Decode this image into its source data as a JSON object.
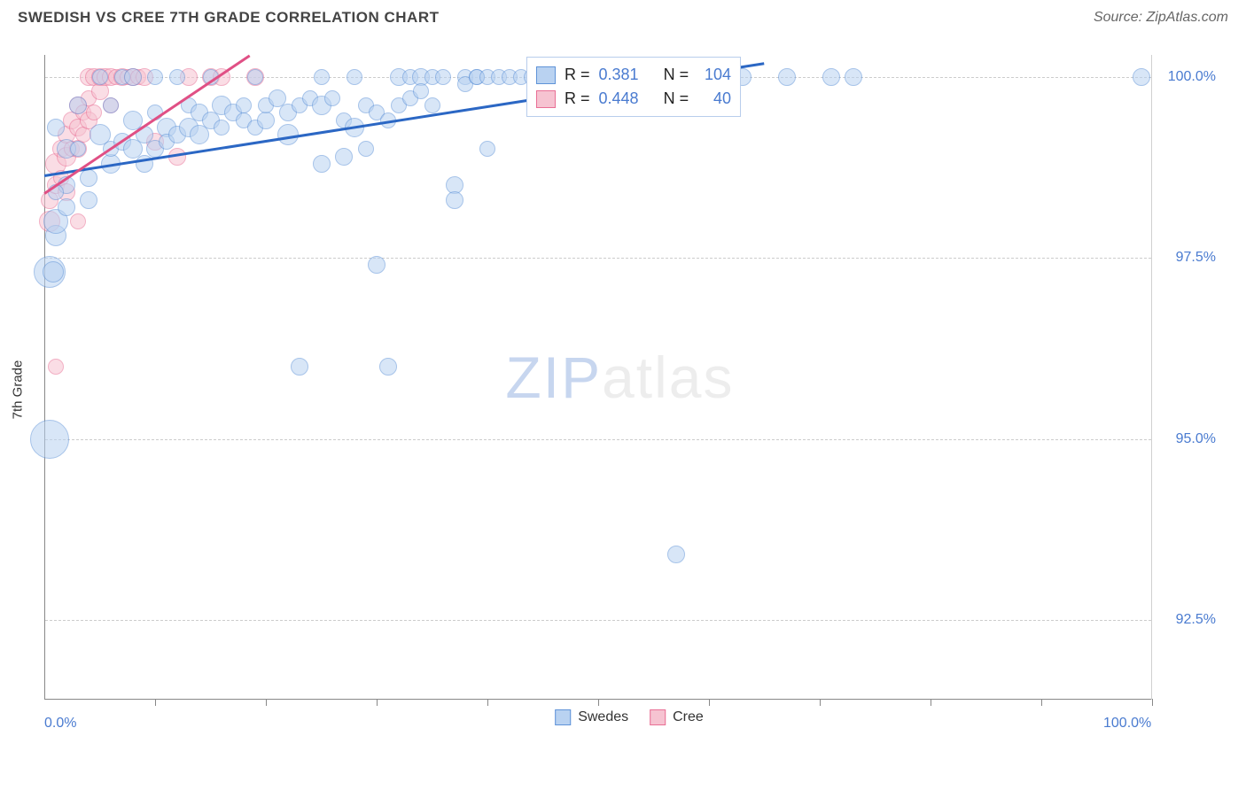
{
  "header": {
    "title": "SWEDISH VS CREE 7TH GRADE CORRELATION CHART",
    "source": "Source: ZipAtlas.com"
  },
  "watermark": {
    "part1": "ZIP",
    "part2": "atlas"
  },
  "chart": {
    "type": "scatter",
    "ylabel": "7th Grade",
    "background_color": "#ffffff",
    "grid_color": "#cccccc",
    "axis_color": "#888888",
    "xlim": [
      0,
      100
    ],
    "ylim": [
      91.4,
      100.3
    ],
    "yticks": [
      {
        "v": 92.5,
        "label": "92.5%"
      },
      {
        "v": 95.0,
        "label": "95.0%"
      },
      {
        "v": 97.5,
        "label": "97.5%"
      },
      {
        "v": 100.0,
        "label": "100.0%"
      }
    ],
    "xtick_labels": [
      {
        "v": 0,
        "label": "0.0%"
      },
      {
        "v": 100,
        "label": "100.0%"
      }
    ],
    "xtick_marks": [
      10,
      20,
      30,
      40,
      50,
      60,
      70,
      80,
      90,
      100
    ],
    "series": [
      {
        "name": "Swedes",
        "fill": "#b9d2f1",
        "stroke": "#5f93d8",
        "fill_opacity": 0.55,
        "trend": {
          "x1": 0,
          "y1": 98.65,
          "x2": 65,
          "y2": 100.2,
          "color": "#2b67c4",
          "width": 2.5
        },
        "points": [
          [
            0.5,
            95.0,
            22
          ],
          [
            0.5,
            97.3,
            18
          ],
          [
            0.8,
            97.3,
            12
          ],
          [
            1,
            97.8,
            12
          ],
          [
            1,
            98.0,
            14
          ],
          [
            2,
            98.2,
            10
          ],
          [
            2,
            98.5,
            10
          ],
          [
            2,
            99.0,
            11
          ],
          [
            1,
            99.3,
            10
          ],
          [
            3,
            99.6,
            10
          ],
          [
            1,
            98.4,
            9
          ],
          [
            3,
            99.0,
            9
          ],
          [
            4,
            98.3,
            10
          ],
          [
            4,
            98.6,
            10
          ],
          [
            5,
            99.2,
            12
          ],
          [
            5,
            100,
            9
          ],
          [
            6,
            98.8,
            11
          ],
          [
            6,
            99.0,
            9
          ],
          [
            6,
            99.6,
            9
          ],
          [
            7,
            99.1,
            10
          ],
          [
            7,
            100,
            9
          ],
          [
            8,
            99.4,
            11
          ],
          [
            8,
            99.0,
            11
          ],
          [
            8,
            100,
            10
          ],
          [
            9,
            98.8,
            10
          ],
          [
            9,
            99.2,
            10
          ],
          [
            10,
            99.0,
            10
          ],
          [
            10,
            99.5,
            9
          ],
          [
            10,
            100,
            9
          ],
          [
            11,
            99.3,
            11
          ],
          [
            11,
            99.1,
            9
          ],
          [
            12,
            99.2,
            10
          ],
          [
            12,
            100,
            9
          ],
          [
            13,
            99.3,
            11
          ],
          [
            13,
            99.6,
            9
          ],
          [
            14,
            99.2,
            11
          ],
          [
            14,
            99.5,
            10
          ],
          [
            15,
            99.4,
            10
          ],
          [
            15,
            100,
            9
          ],
          [
            16,
            99.3,
            9
          ],
          [
            16,
            99.6,
            11
          ],
          [
            17,
            99.5,
            10
          ],
          [
            18,
            99.6,
            9
          ],
          [
            18,
            99.4,
            9
          ],
          [
            19,
            99.3,
            9
          ],
          [
            19,
            100,
            9
          ],
          [
            20,
            99.4,
            10
          ],
          [
            20,
            99.6,
            9
          ],
          [
            21,
            99.7,
            10
          ],
          [
            22,
            99.5,
            10
          ],
          [
            22,
            99.2,
            12
          ],
          [
            23,
            96.0,
            10
          ],
          [
            23,
            99.6,
            9
          ],
          [
            24,
            99.7,
            9
          ],
          [
            25,
            99.6,
            11
          ],
          [
            25,
            98.8,
            10
          ],
          [
            25,
            100,
            9
          ],
          [
            26,
            99.7,
            9
          ],
          [
            27,
            99.4,
            9
          ],
          [
            27,
            98.9,
            10
          ],
          [
            28,
            99.3,
            11
          ],
          [
            28,
            100,
            9
          ],
          [
            29,
            99.6,
            9
          ],
          [
            29,
            99.0,
            9
          ],
          [
            30,
            99.5,
            9
          ],
          [
            30,
            97.4,
            10
          ],
          [
            31,
            96.0,
            10
          ],
          [
            31,
            99.4,
            9
          ],
          [
            32,
            100,
            10
          ],
          [
            32,
            99.6,
            9
          ],
          [
            33,
            100,
            9
          ],
          [
            33,
            99.7,
            9
          ],
          [
            34,
            100,
            10
          ],
          [
            34,
            99.8,
            9
          ],
          [
            35,
            100,
            9
          ],
          [
            35,
            99.6,
            9
          ],
          [
            36,
            100,
            9
          ],
          [
            37,
            98.5,
            10
          ],
          [
            37,
            98.3,
            10
          ],
          [
            38,
            100,
            9
          ],
          [
            38,
            99.9,
            9
          ],
          [
            39,
            100,
            9
          ],
          [
            39,
            100,
            9
          ],
          [
            40,
            99.0,
            9
          ],
          [
            40,
            100,
            9
          ],
          [
            41,
            100,
            9
          ],
          [
            42,
            100,
            9
          ],
          [
            43,
            100,
            9
          ],
          [
            44,
            100,
            9
          ],
          [
            45,
            100,
            9
          ],
          [
            47,
            100,
            9
          ],
          [
            48,
            100,
            9
          ],
          [
            50,
            100,
            9
          ],
          [
            52,
            100,
            9
          ],
          [
            55,
            100,
            9
          ],
          [
            57,
            100,
            9
          ],
          [
            58,
            100,
            9
          ],
          [
            60,
            100,
            10
          ],
          [
            63,
            100,
            10
          ],
          [
            67,
            100,
            10
          ],
          [
            71,
            100,
            10
          ],
          [
            73,
            100,
            10
          ],
          [
            57,
            93.4,
            10
          ],
          [
            99,
            100,
            10
          ]
        ]
      },
      {
        "name": "Cree",
        "fill": "#f6c3d1",
        "stroke": "#e96f95",
        "fill_opacity": 0.55,
        "trend": {
          "x1": 0,
          "y1": 98.4,
          "x2": 18.5,
          "y2": 100.3,
          "color": "#e05085",
          "width": 2.5
        },
        "points": [
          [
            0.5,
            98.0,
            12
          ],
          [
            0.5,
            98.3,
            10
          ],
          [
            1,
            98.5,
            10
          ],
          [
            1,
            98.8,
            12
          ],
          [
            1.5,
            98.6,
            9
          ],
          [
            1.5,
            99.0,
            10
          ],
          [
            2,
            98.4,
            10
          ],
          [
            2,
            98.9,
            11
          ],
          [
            2,
            99.2,
            10
          ],
          [
            2.5,
            99.0,
            9
          ],
          [
            2.5,
            99.4,
            10
          ],
          [
            3,
            99.0,
            10
          ],
          [
            3,
            99.3,
            10
          ],
          [
            3,
            99.6,
            10
          ],
          [
            3.5,
            99.2,
            9
          ],
          [
            3.5,
            99.5,
            9
          ],
          [
            4,
            99.4,
            10
          ],
          [
            4,
            99.7,
            9
          ],
          [
            4,
            100,
            10
          ],
          [
            4.5,
            99.5,
            9
          ],
          [
            4.5,
            100,
            10
          ],
          [
            5,
            99.8,
            10
          ],
          [
            5,
            100,
            10
          ],
          [
            5.5,
            100,
            10
          ],
          [
            6,
            100,
            10
          ],
          [
            6,
            99.6,
            9
          ],
          [
            6.5,
            100,
            9
          ],
          [
            7,
            100,
            10
          ],
          [
            7.5,
            100,
            9
          ],
          [
            8,
            100,
            10
          ],
          [
            8.5,
            100,
            9
          ],
          [
            9,
            100,
            10
          ],
          [
            10,
            99.1,
            10
          ],
          [
            12,
            98.9,
            10
          ],
          [
            13,
            100,
            10
          ],
          [
            15,
            100,
            10
          ],
          [
            16,
            100,
            10
          ],
          [
            19,
            100,
            10
          ],
          [
            1,
            96.0,
            9
          ],
          [
            3,
            98.0,
            9
          ]
        ]
      }
    ],
    "stats_legend": {
      "rows": [
        {
          "swatch_fill": "#b9d2f1",
          "swatch_stroke": "#5f93d8",
          "r_label": "R =",
          "r_value": "0.381",
          "n_label": "N =",
          "n_value": "104"
        },
        {
          "swatch_fill": "#f6c3d1",
          "swatch_stroke": "#e96f95",
          "r_label": "R =",
          "r_value": "0.448",
          "n_label": "N =",
          "n_value": " 40"
        }
      ]
    },
    "bottom_legend": [
      {
        "swatch_fill": "#b9d2f1",
        "swatch_stroke": "#5f93d8",
        "label": "Swedes"
      },
      {
        "swatch_fill": "#f6c3d1",
        "swatch_stroke": "#e96f95",
        "label": "Cree"
      }
    ]
  }
}
